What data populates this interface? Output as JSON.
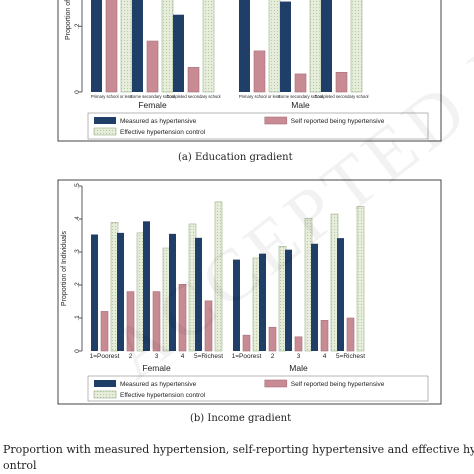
{
  "colors": {
    "measured": "#1f3e68",
    "self_reported": "#c98b93",
    "effective": "#dfe8d3",
    "frame": "#444444"
  },
  "watermark": "ACCEPTED MANUSCRIPT",
  "caption_a": "(a) Education gradient",
  "caption_b": "(b) Income gradient",
  "figure_caption_line1": "Proportion with measured hypertension, self-reporting hypertensive and effective hyp",
  "figure_caption_line2": "ontrol",
  "chart_data": [
    {
      "type": "bar",
      "title": "",
      "ylabel": "Proportion of I",
      "ylim": [
        0,
        0.45
      ],
      "yticks": [
        {
          "v": 0,
          "label": "0"
        },
        {
          "v": 0.2,
          "label": ".2"
        }
      ],
      "groups": [
        {
          "name": "Female",
          "categories": [
            "Primary school or less",
            "Some secondary school",
            "Completed secondary school"
          ]
        },
        {
          "name": "Male",
          "categories": [
            "Primary school or less",
            "Some secondary school",
            "Completed secondary school"
          ]
        }
      ],
      "series": [
        {
          "name": "Measured as hypertensive",
          "values": [
            0.45,
            0.45,
            0.235,
            0.45,
            0.275,
            0.285
          ]
        },
        {
          "name": "Self reported being hypertensive",
          "values": [
            0.3,
            0.155,
            0.075,
            0.125,
            0.055,
            0.06
          ]
        },
        {
          "name": "Effective hypertension control",
          "values": [
            0.45,
            0.45,
            0.45,
            0.45,
            0.45,
            0.45
          ]
        }
      ],
      "legend_position": "bottom"
    },
    {
      "type": "bar",
      "title": "",
      "ylabel": "Proportion of Individuals",
      "ylim": [
        0,
        0.5
      ],
      "yticks": [
        {
          "v": 0,
          "label": "0"
        },
        {
          "v": 0.1,
          "label": ".1"
        },
        {
          "v": 0.2,
          "label": ".2"
        },
        {
          "v": 0.3,
          "label": ".3"
        },
        {
          "v": 0.4,
          "label": ".4"
        },
        {
          "v": 0.5,
          "label": ".5"
        }
      ],
      "groups": [
        {
          "name": "Female",
          "categories": [
            "1=Poorest",
            "2",
            "3",
            "4",
            "5=Richest"
          ]
        },
        {
          "name": "Male",
          "categories": [
            "1=Poorest",
            "2",
            "3",
            "4",
            "5=Richest"
          ]
        }
      ],
      "series": [
        {
          "name": "Measured as hypertensive",
          "values": [
            0.353,
            0.358,
            0.393,
            0.355,
            0.343,
            0.277,
            0.295,
            0.307,
            0.325,
            0.342
          ]
        },
        {
          "name": "Self reported being hypertensive",
          "values": [
            0.12,
            0.18,
            0.18,
            0.202,
            0.152,
            0.048,
            0.072,
            0.043,
            0.093,
            0.1
          ]
        },
        {
          "name": "Effective hypertension control",
          "values": [
            0.39,
            0.358,
            0.312,
            0.385,
            0.452,
            0.282,
            0.317,
            0.402,
            0.415,
            0.438
          ]
        }
      ],
      "legend_position": "bottom"
    }
  ]
}
